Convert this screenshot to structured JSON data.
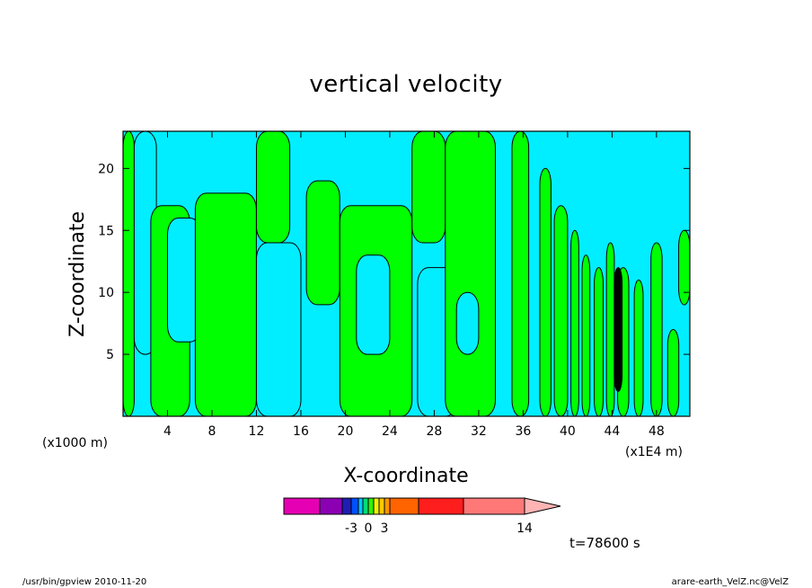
{
  "chart_data": {
    "type": "heatmap",
    "title": "vertical velocity",
    "xlabel": "X-coordinate",
    "ylabel": "Z-coordinate",
    "x_unit_left": "(x1000 m)",
    "x_unit_right": "(x1E4 m)",
    "xlim": [
      0,
      51
    ],
    "ylim": [
      0,
      23
    ],
    "x_ticks": [
      4,
      8,
      12,
      16,
      20,
      24,
      28,
      32,
      36,
      40,
      44,
      48
    ],
    "y_ticks": [
      5,
      10,
      15,
      20
    ],
    "regions": [
      {
        "category": "positive",
        "x0": 0,
        "x1": 1,
        "z0": 0,
        "z1": 23
      },
      {
        "category": "negative",
        "x0": 1,
        "x1": 3,
        "z0": 5,
        "z1": 23
      },
      {
        "category": "positive",
        "x0": 2.5,
        "x1": 6,
        "z0": 0,
        "z1": 17
      },
      {
        "category": "negative",
        "x0": 4,
        "x1": 7,
        "z0": 6,
        "z1": 16
      },
      {
        "category": "positive",
        "x0": 6.5,
        "x1": 12,
        "z0": 0,
        "z1": 18
      },
      {
        "category": "positive",
        "x0": 12,
        "x1": 15,
        "z0": 14,
        "z1": 23
      },
      {
        "category": "negative",
        "x0": 12,
        "x1": 16,
        "z0": 0,
        "z1": 14
      },
      {
        "category": "positive",
        "x0": 16.5,
        "x1": 19.5,
        "z0": 9,
        "z1": 19
      },
      {
        "category": "positive",
        "x0": 19.5,
        "x1": 26,
        "z0": 0,
        "z1": 17
      },
      {
        "category": "negative",
        "x0": 21,
        "x1": 24,
        "z0": 5,
        "z1": 13
      },
      {
        "category": "positive",
        "x0": 26,
        "x1": 29,
        "z0": 14,
        "z1": 23
      },
      {
        "category": "negative",
        "x0": 26.5,
        "x1": 30,
        "z0": 0,
        "z1": 12
      },
      {
        "category": "positive",
        "x0": 29,
        "x1": 33.5,
        "z0": 0,
        "z1": 23
      },
      {
        "category": "negative",
        "x0": 30,
        "x1": 32,
        "z0": 5,
        "z1": 10
      },
      {
        "category": "positive",
        "x0": 35,
        "x1": 36.5,
        "z0": 0,
        "z1": 23
      },
      {
        "category": "positive",
        "x0": 37.5,
        "x1": 38.5,
        "z0": 0,
        "z1": 20
      },
      {
        "category": "positive",
        "x0": 38.8,
        "x1": 40,
        "z0": 0,
        "z1": 17
      },
      {
        "category": "positive",
        "x0": 40.3,
        "x1": 41,
        "z0": 0,
        "z1": 15
      },
      {
        "category": "positive",
        "x0": 41.3,
        "x1": 42,
        "z0": 0,
        "z1": 13
      },
      {
        "category": "positive",
        "x0": 42.4,
        "x1": 43.2,
        "z0": 0,
        "z1": 12
      },
      {
        "category": "positive",
        "x0": 43.5,
        "x1": 44.2,
        "z0": 0,
        "z1": 14
      },
      {
        "category": "positive",
        "x0": 44.5,
        "x1": 45.5,
        "z0": 0,
        "z1": 12
      },
      {
        "category": "positive",
        "x0": 46,
        "x1": 46.8,
        "z0": 0,
        "z1": 11
      },
      {
        "category": "positive",
        "x0": 47.5,
        "x1": 48.5,
        "z0": 0,
        "z1": 14
      },
      {
        "category": "positive",
        "x0": 49,
        "x1": 50,
        "z0": 0,
        "z1": 7
      },
      {
        "category": "positive",
        "x0": 50,
        "x1": 51,
        "z0": 9,
        "z1": 15
      },
      {
        "category": "strong",
        "x0": 44.2,
        "x1": 44.9,
        "z0": 2,
        "z1": 12
      }
    ],
    "colorbar": {
      "ticks": [
        {
          "label": "-3",
          "index": 3
        },
        {
          "label": "0",
          "index": 6
        },
        {
          "label": "3",
          "index": 9
        },
        {
          "label": "14",
          "index": 13
        }
      ],
      "colors": [
        "#e600b4",
        "#8c00b4",
        "#1e1eb4",
        "#0050ff",
        "#00c8ff",
        "#00dc78",
        "#32f000",
        "#f0f000",
        "#ffc800",
        "#ff9600",
        "#ff6400",
        "#ff1e1e",
        "#ff7878",
        "#ffb4b4"
      ],
      "widths": [
        40,
        25,
        10,
        8,
        5,
        6,
        6,
        6,
        6,
        6,
        32,
        50,
        68
      ]
    },
    "colors": {
      "positive": "#00ff00",
      "negative": "#00eeff",
      "strong": "#000000"
    }
  },
  "annotations": {
    "time": "t=78600 s",
    "footer_left": "/usr/bin/gpview   2010-11-20",
    "footer_right": "arare-earth_VelZ.nc@VelZ"
  }
}
